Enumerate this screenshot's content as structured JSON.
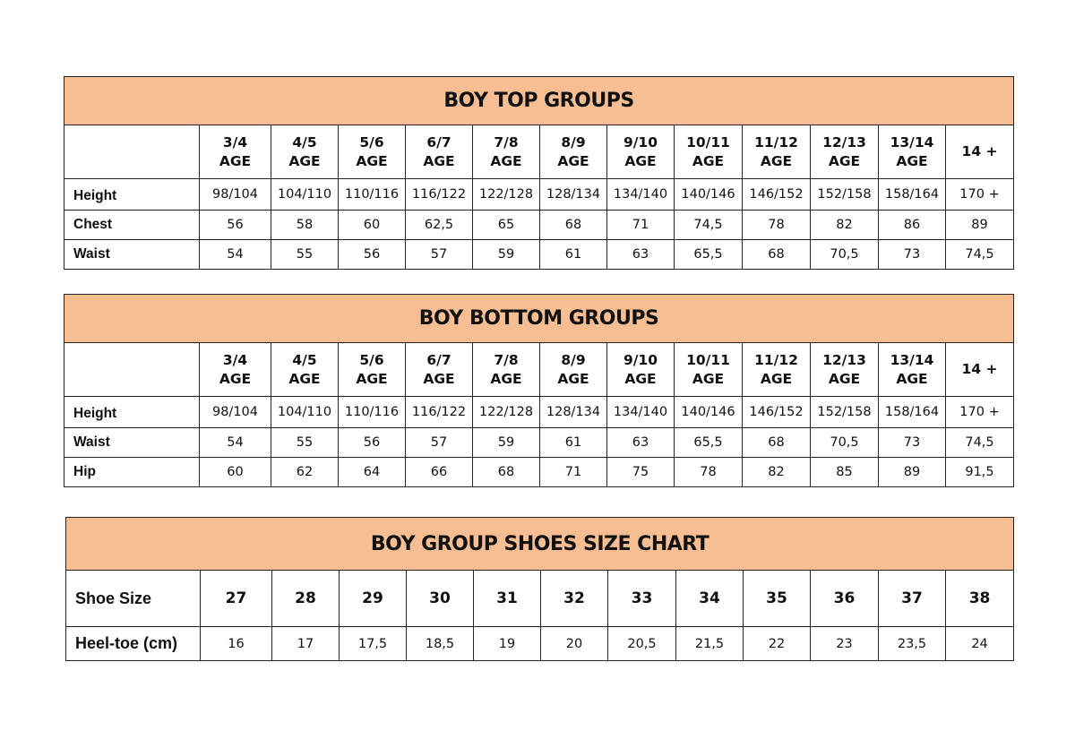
{
  "top": {
    "title": "BOY TOP GROUPS",
    "ages": [
      [
        "3/4",
        "AGE"
      ],
      [
        "4/5",
        "AGE"
      ],
      [
        "5/6",
        "AGE"
      ],
      [
        "6/7",
        "AGE"
      ],
      [
        "7/8",
        "AGE"
      ],
      [
        "8/9",
        "AGE"
      ],
      [
        "9/10",
        "AGE"
      ],
      [
        "10/11",
        "AGE"
      ],
      [
        "11/12",
        "AGE"
      ],
      [
        "12/13",
        "AGE"
      ],
      [
        "13/14",
        "AGE"
      ],
      [
        "14 +",
        ""
      ]
    ],
    "rows": [
      {
        "label": "Height",
        "values": [
          "98/104",
          "104/110",
          "110/116",
          "116/122",
          "122/128",
          "128/134",
          "134/140",
          "140/146",
          "146/152",
          "152/158",
          "158/164",
          "170 +"
        ]
      },
      {
        "label": "Chest",
        "values": [
          "56",
          "58",
          "60",
          "62,5",
          "65",
          "68",
          "71",
          "74,5",
          "78",
          "82",
          "86",
          "89"
        ]
      },
      {
        "label": "Waist",
        "values": [
          "54",
          "55",
          "56",
          "57",
          "59",
          "61",
          "63",
          "65,5",
          "68",
          "70,5",
          "73",
          "74,5"
        ]
      }
    ]
  },
  "bottom": {
    "title": "BOY BOTTOM GROUPS",
    "ages": [
      [
        "3/4",
        "AGE"
      ],
      [
        "4/5",
        "AGE"
      ],
      [
        "5/6",
        "AGE"
      ],
      [
        "6/7",
        "AGE"
      ],
      [
        "7/8",
        "AGE"
      ],
      [
        "8/9",
        "AGE"
      ],
      [
        "9/10",
        "AGE"
      ],
      [
        "10/11",
        "AGE"
      ],
      [
        "11/12",
        "AGE"
      ],
      [
        "12/13",
        "AGE"
      ],
      [
        "13/14",
        "AGE"
      ],
      [
        "14 +",
        ""
      ]
    ],
    "rows": [
      {
        "label": "Height",
        "values": [
          "98/104",
          "104/110",
          "110/116",
          "116/122",
          "122/128",
          "128/134",
          "134/140",
          "140/146",
          "146/152",
          "152/158",
          "158/164",
          "170 +"
        ]
      },
      {
        "label": "Waist",
        "values": [
          "54",
          "55",
          "56",
          "57",
          "59",
          "61",
          "63",
          "65,5",
          "68",
          "70,5",
          "73",
          "74,5"
        ]
      },
      {
        "label": "Hip",
        "values": [
          "60",
          "62",
          "64",
          "66",
          "68",
          "71",
          "75",
          "78",
          "82",
          "85",
          "89",
          "91,5"
        ]
      }
    ]
  },
  "shoes": {
    "title": "BOY GROUP SHOES SIZE CHART",
    "size_label": "Shoe Size",
    "sizes": [
      "27",
      "28",
      "29",
      "30",
      "31",
      "32",
      "33",
      "34",
      "35",
      "36",
      "37",
      "38"
    ],
    "length_label": "Heel-toe (cm)",
    "lengths": [
      "16",
      "17",
      "17,5",
      "18,5",
      "19",
      "20",
      "20,5",
      "21,5",
      "22",
      "23",
      "23,5",
      "24"
    ]
  },
  "colors": {
    "header_fill": "#f7be94",
    "border": "#222222"
  }
}
